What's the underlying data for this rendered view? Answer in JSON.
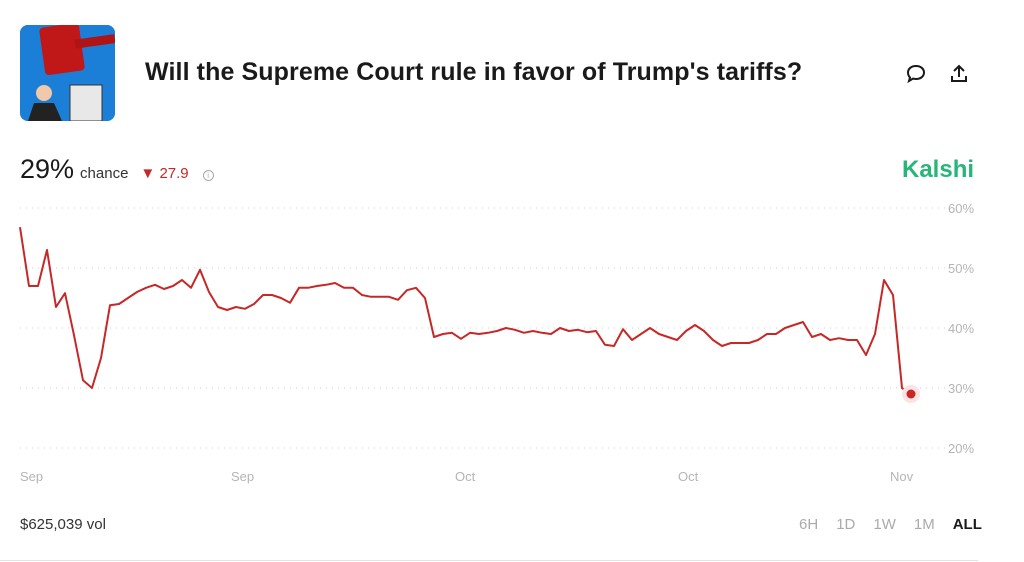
{
  "header": {
    "title": "Will the Supreme Court rule in favor of Trump's tariffs?",
    "logo_icon": "gavel-trump-image",
    "comment_icon": "comment-icon",
    "share_icon": "share-icon"
  },
  "summary": {
    "probability": "29%",
    "chance_label": "chance",
    "delta": "27.9",
    "delta_direction": "down",
    "delta_color": "#c62828",
    "brand": "Kalshi",
    "brand_color": "#27b57a"
  },
  "footer": {
    "volume": "$625,039 vol",
    "ranges": [
      "6H",
      "1D",
      "1W",
      "1M",
      "ALL"
    ],
    "active_range": "ALL"
  },
  "chart_data": {
    "type": "line",
    "line_color": "#c62828",
    "ylim": [
      20,
      60
    ],
    "yticks": [
      "60%",
      "50%",
      "40%",
      "30%",
      "20%"
    ],
    "ytick_values": [
      60,
      50,
      40,
      30,
      20
    ],
    "xticks": [
      "Sep",
      "Sep",
      "Oct",
      "Oct",
      "Nov"
    ],
    "grid": true,
    "series": [
      {
        "values": [
          56.8,
          47,
          47,
          53,
          43.5,
          45.8,
          38.8,
          31.3,
          30,
          35,
          43.8,
          44,
          45,
          46,
          46.7,
          47.2,
          46.5,
          47,
          48,
          46.7,
          49.7,
          46,
          43.5,
          43,
          43.5,
          43.2,
          44,
          45.5,
          45.5,
          45,
          44.2,
          46.7,
          46.7,
          47,
          47.2,
          47.5,
          46.7,
          46.7,
          45.5,
          45.2,
          45.2,
          45.2,
          44.7,
          46.3,
          46.7,
          45,
          38.5,
          39,
          39.2,
          38.2,
          39.2,
          39,
          39.2,
          39.5,
          40,
          39.7,
          39.2,
          39.5,
          39.2,
          39,
          40,
          39.5,
          39.7,
          39.3,
          39.5,
          37.2,
          37,
          39.8,
          38,
          39,
          40,
          39,
          38.5,
          38,
          39.5,
          40.5,
          39.5,
          38,
          37,
          37.5,
          37.5,
          37.5,
          38,
          39,
          39,
          40,
          40.5,
          41,
          38.5,
          39,
          38,
          38.3,
          38,
          38,
          35.5,
          39,
          48,
          45.5,
          30,
          29
        ]
      }
    ]
  }
}
